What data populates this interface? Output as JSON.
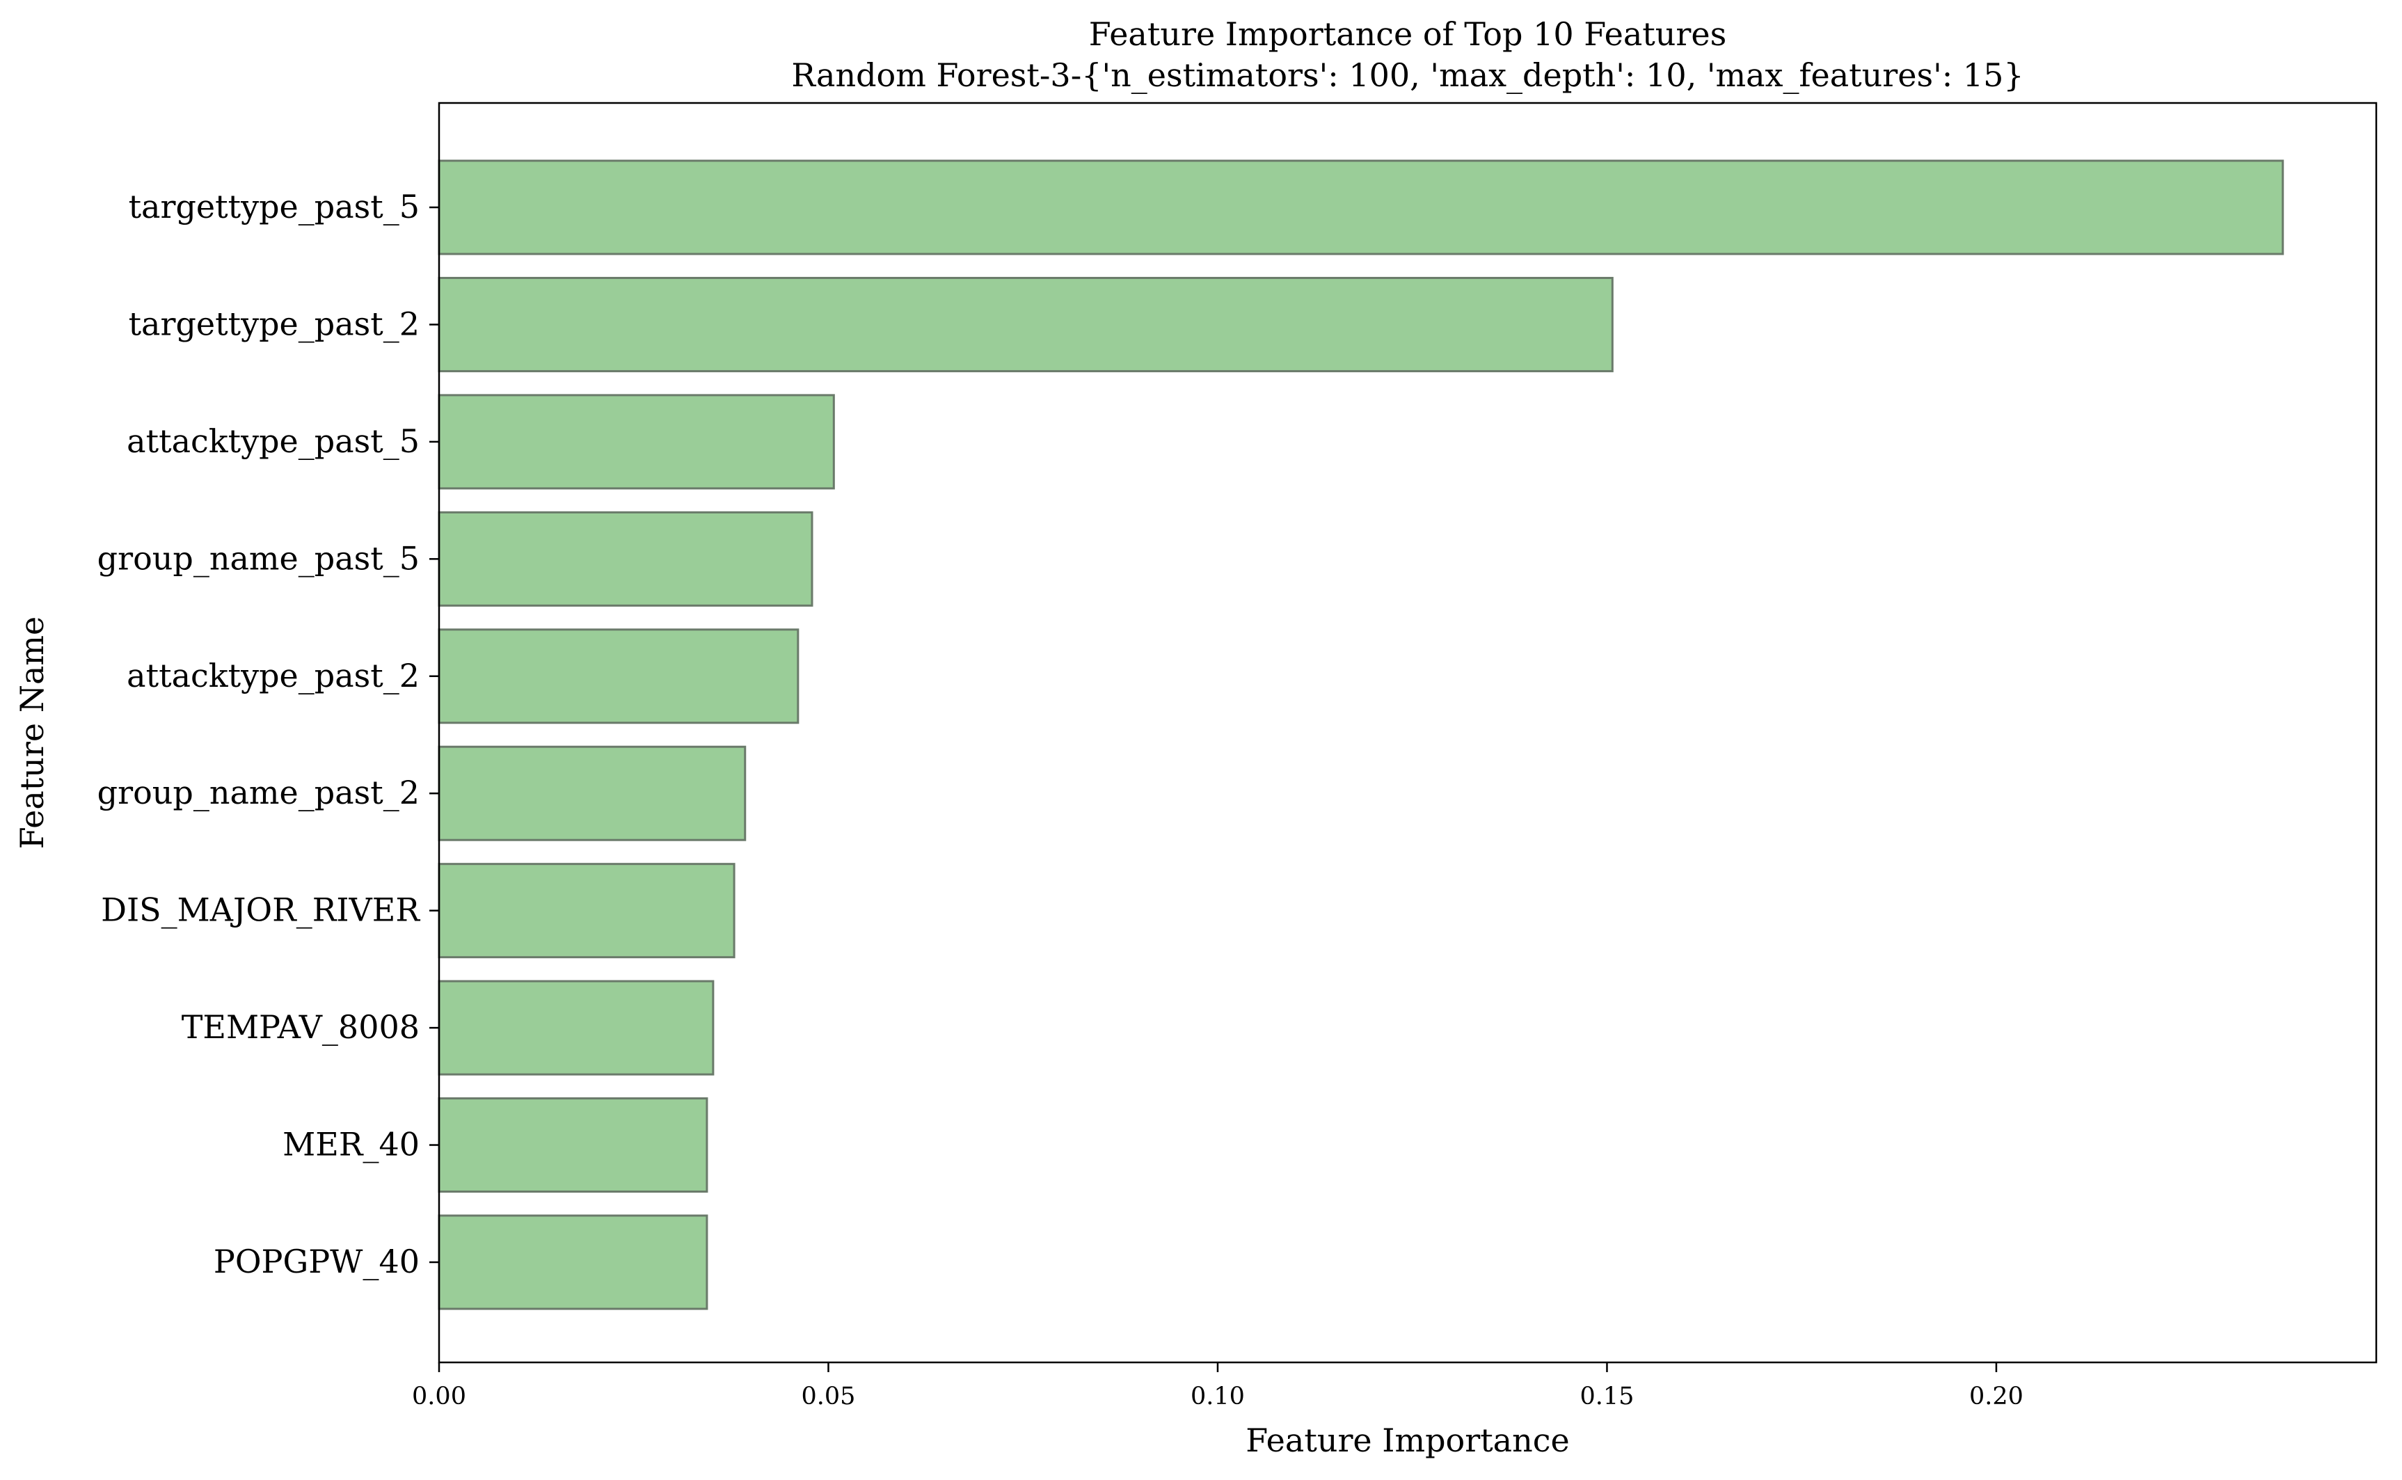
{
  "chart_data": {
    "type": "bar",
    "orientation": "horizontal",
    "title": "Feature Importance of Top 10 Features",
    "subtitle": "Random Forest-3-{'n_estimators': 100, 'max_depth': 10, 'max_features': 15}",
    "xlabel": "Feature Importance",
    "ylabel": "Feature Name",
    "categories": [
      "targettype_past_5",
      "targettype_past_2",
      "attacktype_past_5",
      "group_name_past_5",
      "attacktype_past_2",
      "group_name_past_2",
      "DIS_MAJOR_RIVER",
      "TEMPAV_8008",
      "MER_40",
      "POPGPW_40"
    ],
    "values": [
      0.2368,
      0.1507,
      0.0507,
      0.0479,
      0.0461,
      0.0393,
      0.0379,
      0.0352,
      0.0344,
      0.0344
    ],
    "xlim": [
      0,
      0.2488
    ],
    "xticks": [
      0.0,
      0.05,
      0.1,
      0.15,
      0.2
    ],
    "xtick_labels": [
      "0.00",
      "0.05",
      "0.10",
      "0.15",
      "0.20"
    ],
    "grid": false,
    "legend": "none",
    "colors": {
      "bar_fill": "#9acd98",
      "bar_edge": "#6a7a6a",
      "axis": "#000000",
      "background": "#ffffff"
    }
  }
}
